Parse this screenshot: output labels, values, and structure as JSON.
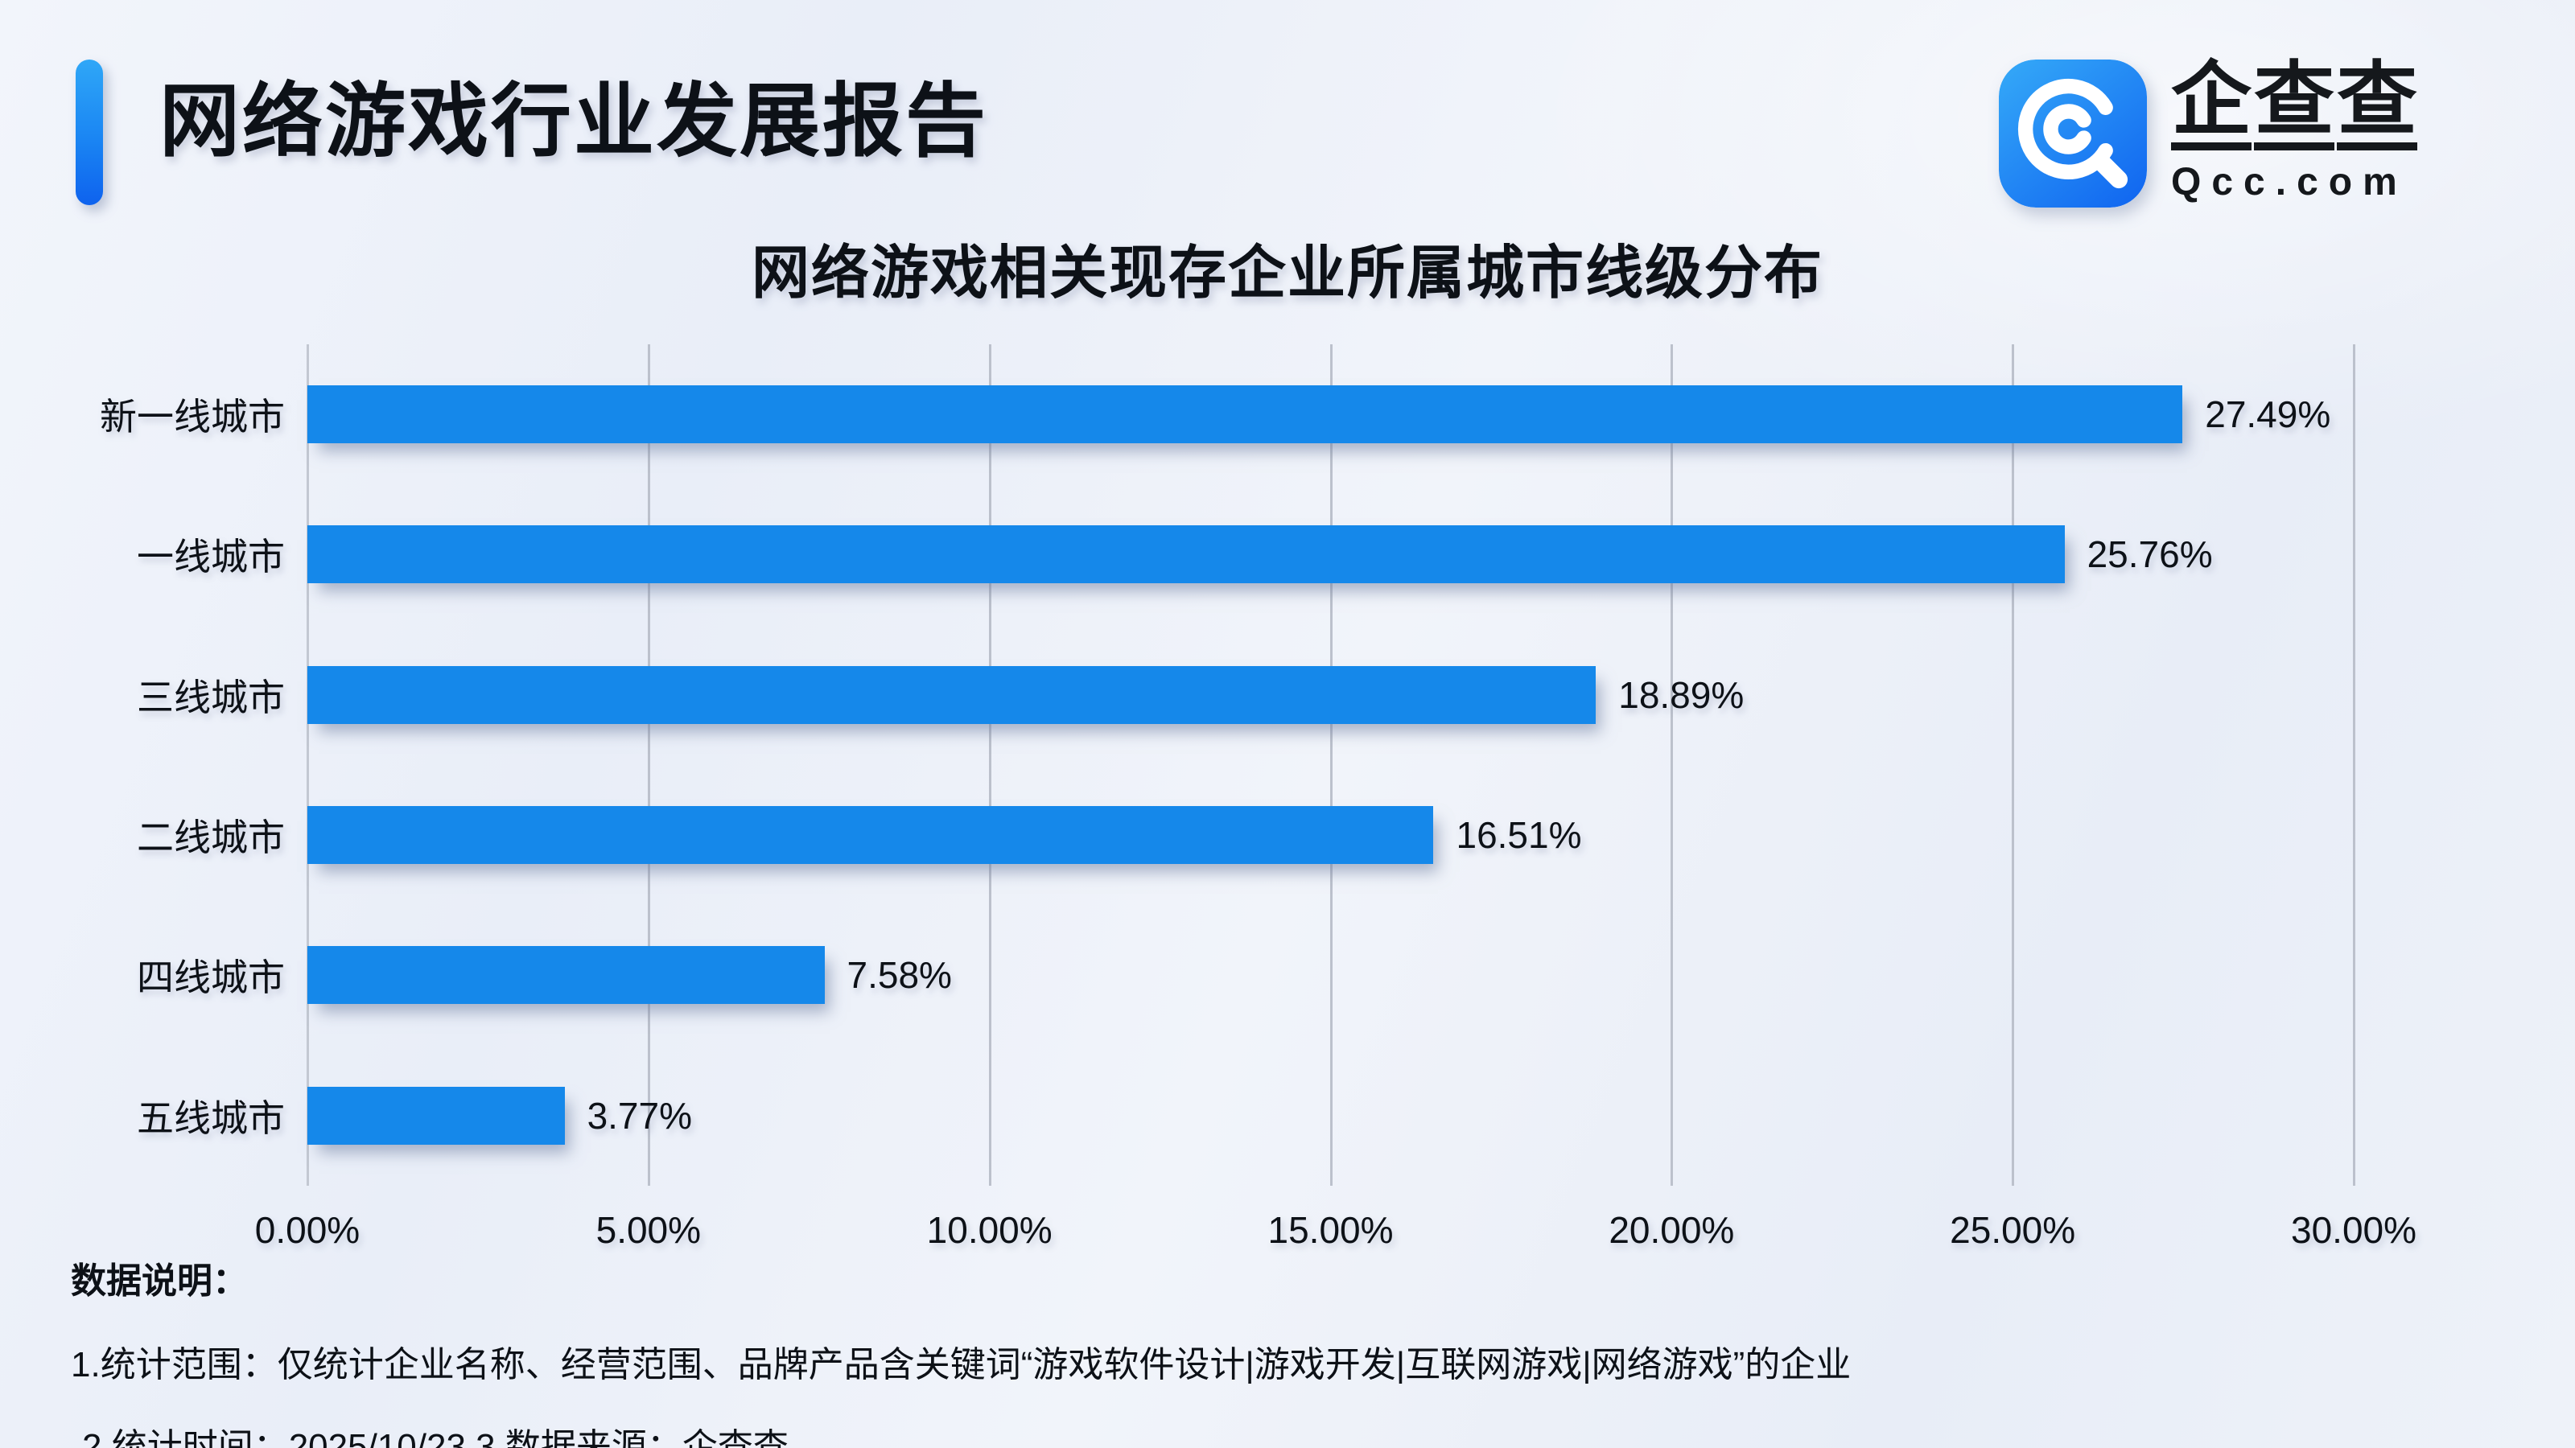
{
  "header": {
    "title": "网络游戏行业发展报告"
  },
  "logo": {
    "name": "企查查",
    "domain": "Qcc.com"
  },
  "chart_data": {
    "type": "bar",
    "orientation": "horizontal",
    "title": "网络游戏相关现存企业所属城市线级分布",
    "categories": [
      "新一线城市",
      "一线城市",
      "三线城市",
      "二线城市",
      "四线城市",
      "五线城市"
    ],
    "values": [
      27.49,
      25.76,
      18.89,
      16.51,
      7.58,
      3.77
    ],
    "value_labels": [
      "27.49%",
      "25.76%",
      "18.89%",
      "16.51%",
      "7.58%",
      "3.77%"
    ],
    "x_tick_values": [
      0,
      5,
      10,
      15,
      20,
      25,
      30
    ],
    "x_ticks": [
      "0.00%",
      "5.00%",
      "10.00%",
      "15.00%",
      "20.00%",
      "25.00%",
      "30.00%"
    ],
    "xlim": [
      0,
      30
    ],
    "grid": true,
    "legend": "none",
    "bar_color": "#1588EA"
  },
  "notes": {
    "header": "数据说明：",
    "line1": "1.统计范围：仅统计企业名称、经营范围、品牌产品含关键词“游戏软件设计|游戏开发|互联网游戏|网络游戏”的企业",
    "line2": "2.统计时间：2025/10/23 3.数据来源：企查查"
  },
  "colors": {
    "bar": "#1588EA",
    "accent_top": "#2FA7F7",
    "accent_bottom": "#0E62EE",
    "gridline": "#BCC1CC",
    "text": "#0D1117",
    "background": "#EDF1F9"
  }
}
